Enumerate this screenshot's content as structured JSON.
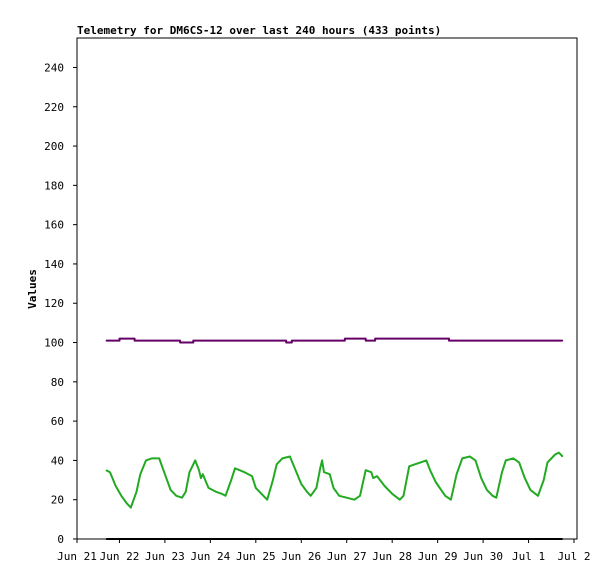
{
  "chart_data": {
    "type": "line",
    "title": "Telemetry for DM6CS-12 over last 240 hours (433 points)",
    "xlabel": "",
    "ylabel": "Values",
    "ylim": [
      0,
      255
    ],
    "yticks": [
      0,
      20,
      40,
      60,
      80,
      100,
      120,
      140,
      160,
      180,
      200,
      220,
      240
    ],
    "xlim": [
      "2024-06-21",
      "2024-07-02"
    ],
    "xtick_labels": [
      "Jun 21",
      "Jun 22",
      "Jun 23",
      "Jun 24",
      "Jun 25",
      "Jun 26",
      "Jun 27",
      "Jun 28",
      "Jun 29",
      "Jun 30",
      "Jul 1",
      "Jul 2"
    ],
    "grid": false,
    "legend": "none",
    "series": [
      {
        "color": "#660066",
        "points": [
          [
            "2024-06-21T17:00",
            101
          ],
          [
            "2024-06-22T00:00",
            101
          ],
          [
            "2024-06-22T00:01",
            102
          ],
          [
            "2024-06-22T08:00",
            102
          ],
          [
            "2024-06-22T08:01",
            101
          ],
          [
            "2024-06-23T08:00",
            101
          ],
          [
            "2024-06-23T08:01",
            100
          ],
          [
            "2024-06-23T15:00",
            100
          ],
          [
            "2024-06-23T15:01",
            101
          ],
          [
            "2024-06-25T16:00",
            101
          ],
          [
            "2024-06-25T16:01",
            100
          ],
          [
            "2024-06-25T19:00",
            100
          ],
          [
            "2024-06-25T19:01",
            101
          ],
          [
            "2024-06-26T23:00",
            101
          ],
          [
            "2024-06-26T23:01",
            102
          ],
          [
            "2024-06-27T10:00",
            102
          ],
          [
            "2024-06-27T10:01",
            101
          ],
          [
            "2024-06-27T15:00",
            101
          ],
          [
            "2024-06-27T15:01",
            102
          ],
          [
            "2024-06-29T06:00",
            102
          ],
          [
            "2024-06-29T06:01",
            101
          ],
          [
            "2024-07-01T18:00",
            101
          ]
        ]
      },
      {
        "color": "#22aa22",
        "points": [
          [
            "2024-06-21T17:00",
            35
          ],
          [
            "2024-06-21T19:00",
            34
          ],
          [
            "2024-06-21T22:00",
            27
          ],
          [
            "2024-06-22T01:00",
            22
          ],
          [
            "2024-06-22T04:00",
            18
          ],
          [
            "2024-06-22T06:00",
            16
          ],
          [
            "2024-06-22T09:00",
            24
          ],
          [
            "2024-06-22T11:00",
            33
          ],
          [
            "2024-06-22T14:00",
            40
          ],
          [
            "2024-06-22T17:00",
            41
          ],
          [
            "2024-06-22T21:00",
            41
          ],
          [
            "2024-06-23T00:00",
            33
          ],
          [
            "2024-06-23T03:00",
            25
          ],
          [
            "2024-06-23T06:00",
            22
          ],
          [
            "2024-06-23T09:00",
            21
          ],
          [
            "2024-06-23T11:00",
            24
          ],
          [
            "2024-06-23T13:00",
            34
          ],
          [
            "2024-06-23T16:00",
            40
          ],
          [
            "2024-06-23T18:00",
            35
          ],
          [
            "2024-06-23T19:00",
            31
          ],
          [
            "2024-06-23T20:00",
            33
          ],
          [
            "2024-06-23T23:00",
            26
          ],
          [
            "2024-06-24T03:00",
            24
          ],
          [
            "2024-06-24T06:00",
            23
          ],
          [
            "2024-06-24T08:00",
            22
          ],
          [
            "2024-06-24T11:00",
            30
          ],
          [
            "2024-06-24T13:00",
            36
          ],
          [
            "2024-06-24T18:00",
            34
          ],
          [
            "2024-06-24T22:00",
            32
          ],
          [
            "2024-06-25T00:00",
            26
          ],
          [
            "2024-06-25T04:00",
            22
          ],
          [
            "2024-06-25T06:00",
            20
          ],
          [
            "2024-06-25T09:00",
            30
          ],
          [
            "2024-06-25T11:00",
            38
          ],
          [
            "2024-06-25T14:00",
            41
          ],
          [
            "2024-06-25T18:00",
            42
          ],
          [
            "2024-06-25T21:00",
            35
          ],
          [
            "2024-06-26T00:00",
            28
          ],
          [
            "2024-06-26T03:00",
            24
          ],
          [
            "2024-06-26T05:00",
            22
          ],
          [
            "2024-06-26T08:00",
            26
          ],
          [
            "2024-06-26T10:00",
            36
          ],
          [
            "2024-06-26T11:00",
            40
          ],
          [
            "2024-06-26T12:00",
            34
          ],
          [
            "2024-06-26T15:00",
            33
          ],
          [
            "2024-06-26T17:00",
            26
          ],
          [
            "2024-06-26T20:00",
            22
          ],
          [
            "2024-06-27T00:00",
            21
          ],
          [
            "2024-06-27T04:00",
            20
          ],
          [
            "2024-06-27T07:00",
            22
          ],
          [
            "2024-06-27T10:00",
            35
          ],
          [
            "2024-06-27T13:00",
            34
          ],
          [
            "2024-06-27T14:00",
            31
          ],
          [
            "2024-06-27T16:00",
            32
          ],
          [
            "2024-06-27T20:00",
            27
          ],
          [
            "2024-06-28T00:00",
            23
          ],
          [
            "2024-06-28T04:00",
            20
          ],
          [
            "2024-06-28T06:00",
            22
          ],
          [
            "2024-06-28T09:00",
            37
          ],
          [
            "2024-06-28T12:00",
            38
          ],
          [
            "2024-06-28T15:00",
            39
          ],
          [
            "2024-06-28T18:00",
            40
          ],
          [
            "2024-06-28T20:00",
            35
          ],
          [
            "2024-06-28T23:00",
            29
          ],
          [
            "2024-06-29T04:00",
            22
          ],
          [
            "2024-06-29T07:00",
            20
          ],
          [
            "2024-06-29T10:00",
            33
          ],
          [
            "2024-06-29T13:00",
            41
          ],
          [
            "2024-06-29T17:00",
            42
          ],
          [
            "2024-06-29T20:00",
            40
          ],
          [
            "2024-06-29T23:00",
            31
          ],
          [
            "2024-06-30T02:00",
            25
          ],
          [
            "2024-06-30T05:00",
            22
          ],
          [
            "2024-06-30T07:00",
            21
          ],
          [
            "2024-06-30T10:00",
            34
          ],
          [
            "2024-06-30T12:00",
            40
          ],
          [
            "2024-06-30T16:00",
            41
          ],
          [
            "2024-06-30T19:00",
            39
          ],
          [
            "2024-06-30T22:00",
            31
          ],
          [
            "2024-07-01T01:00",
            25
          ],
          [
            "2024-07-01T05:00",
            22
          ],
          [
            "2024-07-01T08:00",
            30
          ],
          [
            "2024-07-01T10:00",
            39
          ],
          [
            "2024-07-01T14:00",
            43
          ],
          [
            "2024-07-01T16:00",
            44
          ],
          [
            "2024-07-01T18:00",
            42
          ]
        ]
      },
      {
        "color": "#000000",
        "points": [
          [
            "2024-06-21T17:00",
            0
          ],
          [
            "2024-07-01T18:00",
            0
          ]
        ]
      }
    ]
  }
}
